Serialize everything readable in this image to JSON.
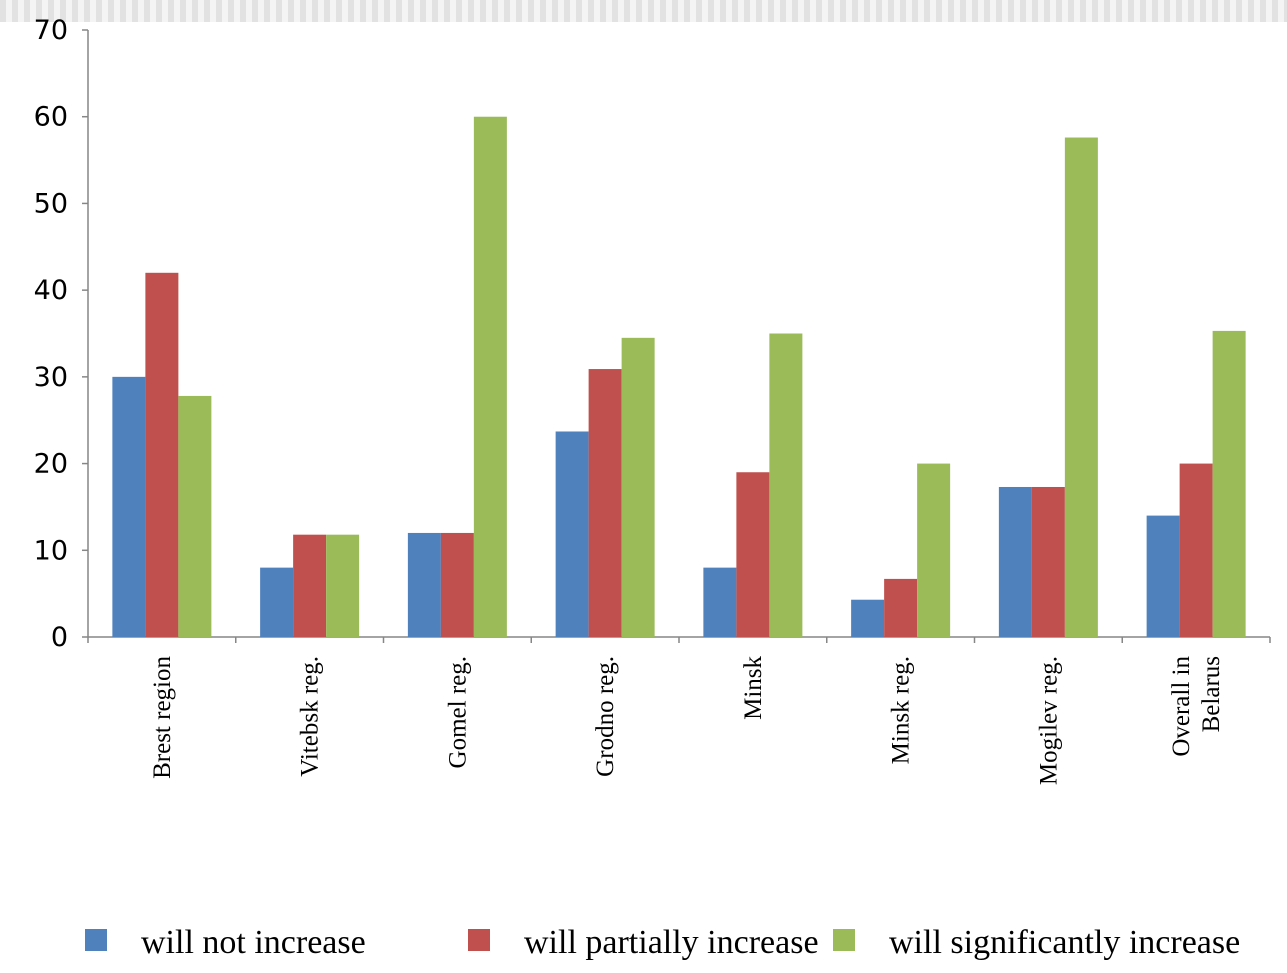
{
  "chart_data": {
    "type": "bar",
    "title": "",
    "xlabel": "",
    "ylabel": "",
    "ylim": [
      0,
      70
    ],
    "yticks": [
      0,
      10,
      20,
      30,
      40,
      50,
      60,
      70
    ],
    "grid": false,
    "legend_position": "bottom",
    "categories": [
      [
        "Brest region"
      ],
      [
        "Vitebsk reg."
      ],
      [
        "Gomel reg."
      ],
      [
        "Grodno reg."
      ],
      [
        "Minsk"
      ],
      [
        "Minsk reg."
      ],
      [
        "Mogilev reg."
      ],
      [
        "Overall in",
        "Belarus"
      ]
    ],
    "series": [
      {
        "name": "will not increase",
        "color": "#4f81bd",
        "values": [
          30,
          8,
          12,
          23.7,
          8,
          4.3,
          17.3,
          14
        ]
      },
      {
        "name": "will partially increase",
        "color": "#c0504d",
        "values": [
          42,
          11.8,
          12,
          30.9,
          19,
          6.7,
          17.3,
          20
        ]
      },
      {
        "name": "will significantly increase",
        "color": "#9bbb59",
        "values": [
          27.8,
          11.8,
          60,
          34.5,
          35,
          20,
          57.6,
          35.3
        ]
      }
    ]
  }
}
